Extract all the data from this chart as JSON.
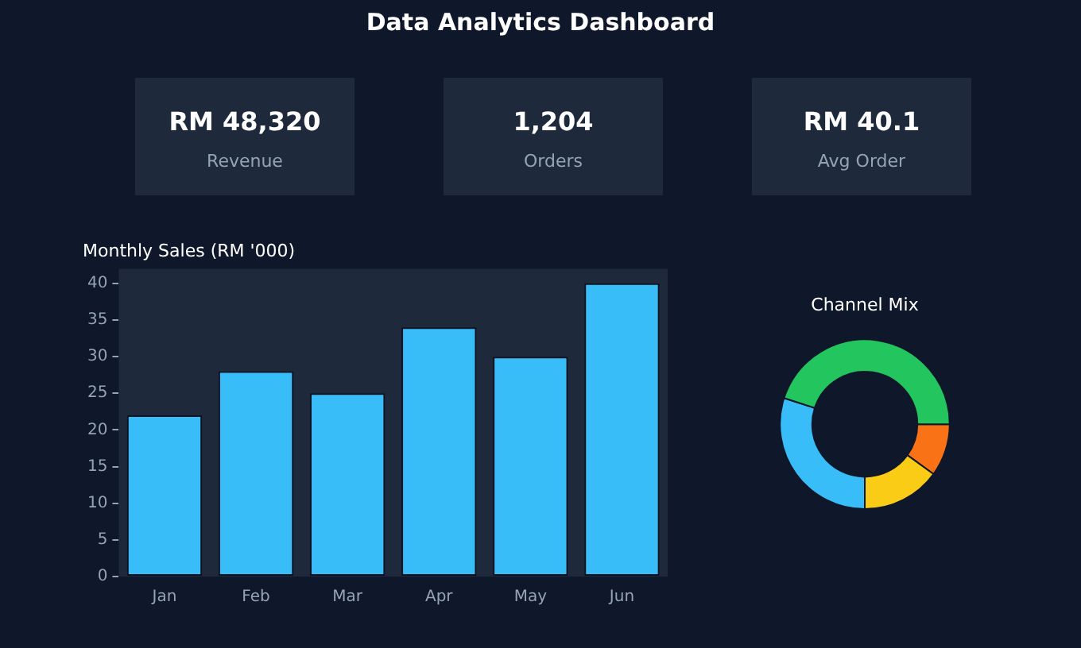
{
  "chart_data": [
    {
      "type": "other",
      "title": "Data Analytics Dashboard",
      "annotations": [
        "RM 48,320",
        "Revenue",
        "1,204",
        "Orders",
        "RM 40.1",
        "Avg Order"
      ]
    },
    {
      "type": "bar",
      "title": "Monthly Sales (RM '000)",
      "categories": [
        "Jan",
        "Feb",
        "Mar",
        "Apr",
        "May",
        "Jun"
      ],
      "values": [
        22,
        28,
        25,
        34,
        30,
        40
      ],
      "color": "#38bdf8",
      "ylim": [
        0,
        42
      ],
      "yticks": [
        0,
        5,
        10,
        15,
        20,
        25,
        30,
        35,
        40
      ],
      "grid": false,
      "legend": false
    },
    {
      "type": "donut",
      "title": "Channel Mix",
      "categories": [
        null,
        null,
        null,
        null
      ],
      "values": [
        10,
        15,
        30,
        45
      ],
      "colors": [
        "#f97316",
        "#facc15",
        "#38bdf8",
        "#22c55e"
      ],
      "legend": false
    }
  ]
}
